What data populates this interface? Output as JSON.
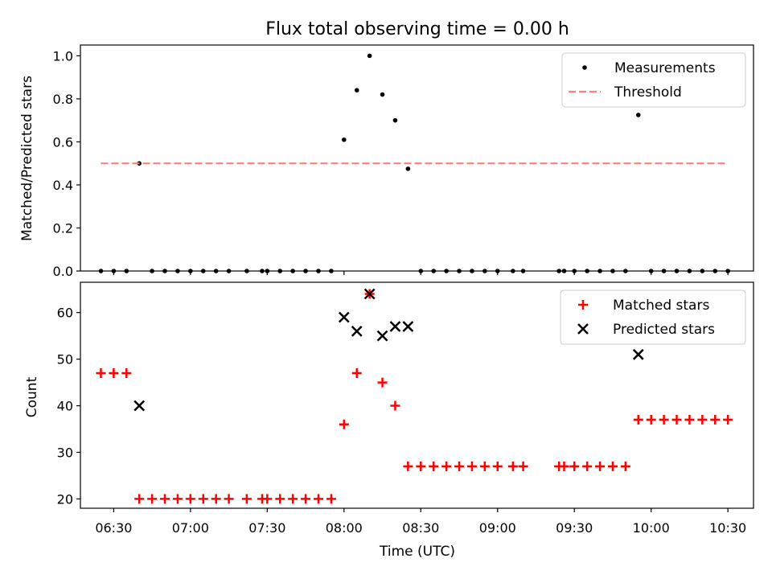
{
  "chart_data": {
    "title": "Flux total observing time = 0.00 h",
    "xlabel": "Time (UTC)",
    "x_ticks": [
      "06:30",
      "07:00",
      "07:30",
      "08:00",
      "08:30",
      "09:00",
      "09:30",
      "10:00",
      "10:30"
    ],
    "xlim": [
      "06:17",
      "10:40"
    ],
    "panels": [
      {
        "type": "scatter",
        "ylabel": "Matched/Predicted stars",
        "ylim": [
          0,
          1.05
        ],
        "y_ticks": [
          "0.0",
          "0.2",
          "0.4",
          "0.6",
          "0.8",
          "1.0"
        ],
        "legend_position": "upper-right",
        "series": [
          {
            "name": "Measurements",
            "marker": "dot",
            "color": "#000000",
            "points": [
              [
                "06:25",
                0
              ],
              [
                "06:30",
                0
              ],
              [
                "06:35",
                0
              ],
              [
                "06:40",
                0.5
              ],
              [
                "06:45",
                0
              ],
              [
                "06:50",
                0
              ],
              [
                "06:55",
                0
              ],
              [
                "07:00",
                0
              ],
              [
                "07:05",
                0
              ],
              [
                "07:10",
                0
              ],
              [
                "07:15",
                0
              ],
              [
                "07:22",
                0
              ],
              [
                "07:28",
                0
              ],
              [
                "07:30",
                0
              ],
              [
                "07:35",
                0
              ],
              [
                "07:40",
                0
              ],
              [
                "07:45",
                0
              ],
              [
                "07:50",
                0
              ],
              [
                "07:55",
                0
              ],
              [
                "08:00",
                0.61
              ],
              [
                "08:05",
                0.84
              ],
              [
                "08:10",
                1.0
              ],
              [
                "08:15",
                0.82
              ],
              [
                "08:20",
                0.7
              ],
              [
                "08:25",
                0.475
              ],
              [
                "08:30",
                0
              ],
              [
                "08:35",
                0
              ],
              [
                "08:40",
                0
              ],
              [
                "08:45",
                0
              ],
              [
                "08:50",
                0
              ],
              [
                "08:55",
                0
              ],
              [
                "09:00",
                0
              ],
              [
                "09:06",
                0
              ],
              [
                "09:10",
                0
              ],
              [
                "09:24",
                0
              ],
              [
                "09:26",
                0
              ],
              [
                "09:30",
                0
              ],
              [
                "09:35",
                0
              ],
              [
                "09:40",
                0
              ],
              [
                "09:45",
                0
              ],
              [
                "09:50",
                0
              ],
              [
                "09:55",
                0.725
              ],
              [
                "10:00",
                0
              ],
              [
                "10:05",
                0
              ],
              [
                "10:10",
                0
              ],
              [
                "10:15",
                0
              ],
              [
                "10:20",
                0
              ],
              [
                "10:25",
                0
              ],
              [
                "10:30",
                0
              ]
            ]
          },
          {
            "name": "Threshold",
            "type": "line",
            "style": "dashed",
            "color": "#ff7f7f",
            "points": [
              [
                "06:25",
                0.5
              ],
              [
                "10:30",
                0.5
              ]
            ]
          }
        ]
      },
      {
        "type": "scatter",
        "ylabel": "Count",
        "ylim": [
          18,
          66.5
        ],
        "y_ticks": [
          "20",
          "30",
          "40",
          "50",
          "60"
        ],
        "legend_position": "upper-right",
        "series": [
          {
            "name": "Matched stars",
            "marker": "plus",
            "color": "#ff0000",
            "points": [
              [
                "06:25",
                47
              ],
              [
                "06:30",
                47
              ],
              [
                "06:35",
                47
              ],
              [
                "06:40",
                20
              ],
              [
                "06:45",
                20
              ],
              [
                "06:50",
                20
              ],
              [
                "06:55",
                20
              ],
              [
                "07:00",
                20
              ],
              [
                "07:05",
                20
              ],
              [
                "07:10",
                20
              ],
              [
                "07:15",
                20
              ],
              [
                "07:22",
                20
              ],
              [
                "07:28",
                20
              ],
              [
                "07:30",
                20
              ],
              [
                "07:35",
                20
              ],
              [
                "07:40",
                20
              ],
              [
                "07:45",
                20
              ],
              [
                "07:50",
                20
              ],
              [
                "07:55",
                20
              ],
              [
                "08:00",
                36
              ],
              [
                "08:05",
                47
              ],
              [
                "08:10",
                64
              ],
              [
                "08:15",
                45
              ],
              [
                "08:20",
                40
              ],
              [
                "08:25",
                27
              ],
              [
                "08:30",
                27
              ],
              [
                "08:35",
                27
              ],
              [
                "08:40",
                27
              ],
              [
                "08:45",
                27
              ],
              [
                "08:50",
                27
              ],
              [
                "08:55",
                27
              ],
              [
                "09:00",
                27
              ],
              [
                "09:06",
                27
              ],
              [
                "09:10",
                27
              ],
              [
                "09:24",
                27
              ],
              [
                "09:26",
                27
              ],
              [
                "09:30",
                27
              ],
              [
                "09:35",
                27
              ],
              [
                "09:40",
                27
              ],
              [
                "09:45",
                27
              ],
              [
                "09:50",
                27
              ],
              [
                "09:55",
                37
              ],
              [
                "10:00",
                37
              ],
              [
                "10:05",
                37
              ],
              [
                "10:10",
                37
              ],
              [
                "10:15",
                37
              ],
              [
                "10:20",
                37
              ],
              [
                "10:25",
                37
              ],
              [
                "10:30",
                37
              ]
            ]
          },
          {
            "name": "Predicted stars",
            "marker": "x",
            "color": "#000000",
            "points": [
              [
                "06:40",
                40
              ],
              [
                "08:00",
                59
              ],
              [
                "08:05",
                56
              ],
              [
                "08:10",
                64
              ],
              [
                "08:15",
                55
              ],
              [
                "08:20",
                57
              ],
              [
                "08:25",
                57
              ],
              [
                "09:55",
                51
              ]
            ]
          }
        ]
      }
    ]
  }
}
